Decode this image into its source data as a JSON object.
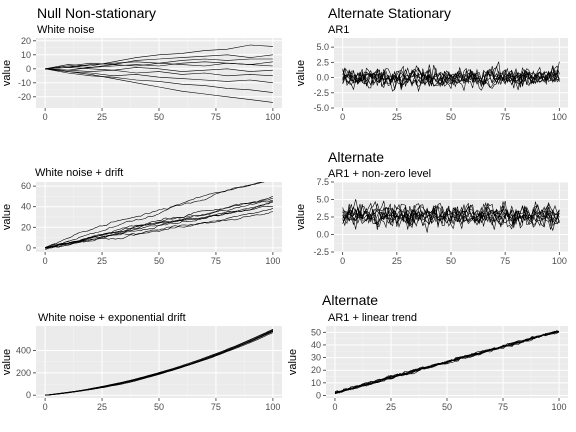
{
  "colors": {
    "panel_bg": "#ebebeb",
    "grid_major": "#ffffff",
    "grid_minor": "#f4f4f4",
    "line": "#000000",
    "tick_text": "#4d4d4d"
  },
  "chart_data": [
    {
      "type": "line",
      "title": "Null Non-stationary",
      "subtitle": "White noise",
      "ylabel": "value",
      "xlim": [
        -4,
        104
      ],
      "ylim": [
        -28,
        22
      ],
      "x_ticks": [
        0,
        25,
        50,
        75,
        100
      ],
      "y_ticks": [
        -20,
        -10,
        0,
        10,
        20
      ],
      "x_tick_labels": [
        "0",
        "25",
        "50",
        "75",
        "100"
      ],
      "y_tick_labels": [
        "-20",
        "-10",
        "0",
        "10",
        "20"
      ],
      "grid": true,
      "series_count": 10,
      "series": [
        {
          "x": [
            0,
            10,
            20,
            30,
            40,
            50,
            60,
            70,
            80,
            90,
            100
          ],
          "values": [
            0,
            3,
            2,
            5,
            8,
            10,
            11,
            13,
            14,
            17,
            16
          ]
        },
        {
          "x": [
            0,
            10,
            20,
            30,
            40,
            50,
            60,
            70,
            80,
            90,
            100
          ],
          "values": [
            0,
            2,
            4,
            3,
            6,
            7,
            8,
            9,
            10,
            8,
            10
          ]
        },
        {
          "x": [
            0,
            10,
            20,
            30,
            40,
            50,
            60,
            70,
            80,
            90,
            100
          ],
          "values": [
            0,
            1,
            3,
            4,
            5,
            4,
            6,
            7,
            6,
            7,
            7
          ]
        },
        {
          "x": [
            0,
            10,
            20,
            30,
            40,
            50,
            60,
            70,
            80,
            90,
            100
          ],
          "values": [
            0,
            -1,
            1,
            2,
            3,
            2,
            4,
            5,
            4,
            3,
            5
          ]
        },
        {
          "x": [
            0,
            10,
            20,
            30,
            40,
            50,
            60,
            70,
            80,
            90,
            100
          ],
          "values": [
            0,
            1,
            0,
            -1,
            1,
            0,
            -2,
            -1,
            0,
            -2,
            -1
          ]
        },
        {
          "x": [
            0,
            10,
            20,
            30,
            40,
            50,
            60,
            70,
            80,
            90,
            100
          ],
          "values": [
            0,
            -1,
            -2,
            -1,
            -3,
            -2,
            -4,
            -3,
            -5,
            -4,
            -5
          ]
        },
        {
          "x": [
            0,
            10,
            20,
            30,
            40,
            50,
            60,
            70,
            80,
            90,
            100
          ],
          "values": [
            0,
            -2,
            -3,
            -5,
            -4,
            -6,
            -7,
            -8,
            -9,
            -8,
            -10
          ]
        },
        {
          "x": [
            0,
            10,
            20,
            30,
            40,
            50,
            60,
            70,
            80,
            90,
            100
          ],
          "values": [
            0,
            -3,
            -5,
            -6,
            -8,
            -9,
            -11,
            -12,
            -14,
            -15,
            -17
          ]
        },
        {
          "x": [
            0,
            10,
            20,
            30,
            40,
            50,
            60,
            70,
            80,
            90,
            100
          ],
          "values": [
            0,
            -2,
            -4,
            -7,
            -10,
            -13,
            -16,
            -18,
            -20,
            -22,
            -24
          ]
        },
        {
          "x": [
            0,
            10,
            20,
            30,
            40,
            50,
            60,
            70,
            80,
            90,
            100
          ],
          "values": [
            0,
            2,
            1,
            3,
            2,
            4,
            3,
            2,
            4,
            3,
            2
          ]
        }
      ]
    },
    {
      "type": "line",
      "title": "Alternate Stationary",
      "subtitle": "AR1",
      "ylabel": "value",
      "xlim": [
        -4,
        104
      ],
      "ylim": [
        -5,
        6.5
      ],
      "x_ticks": [
        0,
        25,
        50,
        75,
        100
      ],
      "y_ticks": [
        -5,
        -2.5,
        0,
        2.5,
        5
      ],
      "x_tick_labels": [
        "0",
        "25",
        "50",
        "75",
        "100"
      ],
      "y_tick_labels": [
        "-5.0",
        "-2.5",
        "0.0",
        "2.5",
        "5.0"
      ],
      "grid": true,
      "series_count": 10,
      "series_mean": 0,
      "series_amplitude": 1.6
    },
    {
      "type": "line",
      "title": "",
      "subtitle": "White noise + drift",
      "ylabel": "value",
      "xlim": [
        -4,
        104
      ],
      "ylim": [
        -4,
        64
      ],
      "x_ticks": [
        0,
        25,
        50,
        75,
        100
      ],
      "y_ticks": [
        0,
        20,
        40,
        60
      ],
      "x_tick_labels": [
        "0",
        "25",
        "50",
        "75",
        "100"
      ],
      "y_tick_labels": [
        "0",
        "20",
        "40",
        "60"
      ],
      "grid": true,
      "series_count": 10,
      "series_start": 0,
      "series_end_min": 35,
      "series_end_max": 62
    },
    {
      "type": "line",
      "title": "Alternate",
      "subtitle": "AR1 + non-zero level",
      "ylabel": "value",
      "xlim": [
        -4,
        104
      ],
      "ylim": [
        -2.5,
        7.5
      ],
      "x_ticks": [
        0,
        25,
        50,
        75,
        100
      ],
      "y_ticks": [
        -2.5,
        0,
        2.5,
        5,
        7.5
      ],
      "x_tick_labels": [
        "0",
        "25",
        "50",
        "75",
        "100"
      ],
      "y_tick_labels": [
        "-2.5",
        "0.0",
        "2.5",
        "5.0",
        "7.5"
      ],
      "grid": true,
      "series_count": 10,
      "series_mean": 2.7,
      "series_amplitude": 1.5
    },
    {
      "type": "line",
      "title": "",
      "subtitle": "White noise + exponential drift",
      "ylabel": "value",
      "xlim": [
        -4,
        104
      ],
      "ylim": [
        -25,
        620
      ],
      "x_ticks": [
        0,
        25,
        50,
        75,
        100
      ],
      "y_ticks": [
        0,
        200,
        400
      ],
      "x_tick_labels": [
        "0",
        "25",
        "50",
        "75",
        "100"
      ],
      "y_tick_labels": [
        "0",
        "200",
        "400"
      ],
      "grid": true,
      "series_count": 10,
      "series_start": 0,
      "series_end": 580
    },
    {
      "type": "line",
      "title": "Alternate",
      "subtitle": "AR1 + linear trend",
      "ylabel": "value",
      "xlim": [
        -4,
        104
      ],
      "ylim": [
        -2,
        55
      ],
      "x_ticks": [
        0,
        25,
        50,
        75,
        100
      ],
      "y_ticks": [
        0,
        10,
        20,
        30,
        40,
        50
      ],
      "x_tick_labels": [
        "0",
        "25",
        "50",
        "75",
        "100"
      ],
      "y_tick_labels": [
        "0",
        "10",
        "20",
        "30",
        "40",
        "50"
      ],
      "grid": true,
      "series_count": 10,
      "series_start": 2,
      "series_end": 51
    }
  ]
}
